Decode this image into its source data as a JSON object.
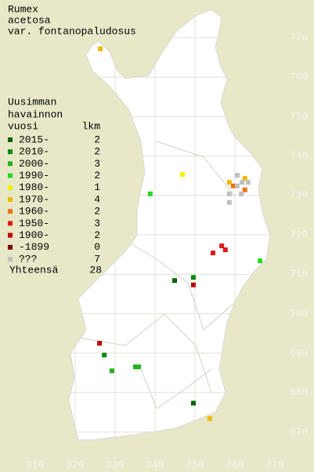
{
  "title": [
    "Rumex",
    "acetosa",
    "var. fontanopaludosus"
  ],
  "legend": {
    "header": [
      "Uusimman",
      "havainnon"
    ],
    "year_heading": "vuosi",
    "count_heading": "lkm",
    "items": [
      {
        "label": "2015-",
        "count": 2,
        "color": "#006400",
        "points": [
          [
            344.9,
            708.4
          ],
          [
            349.6,
            677.3
          ]
        ]
      },
      {
        "label": "2010-",
        "count": 2,
        "color": "#0a8a0a",
        "points": [
          [
            349.6,
            709.2
          ],
          [
            327.3,
            689.5
          ]
        ]
      },
      {
        "label": "2000-",
        "count": 3,
        "color": "#22b222",
        "points": [
          [
            329.2,
            685.5
          ],
          [
            335.1,
            686.5
          ],
          [
            335.9,
            686.5
          ]
        ]
      },
      {
        "label": "1990-",
        "count": 2,
        "color": "#22dd22",
        "points": [
          [
            338.8,
            730.4
          ],
          [
            366.3,
            713.4
          ]
        ]
      },
      {
        "label": "1980-",
        "count": 1,
        "color": "#f0f000",
        "points": [
          [
            346.9,
            735.3
          ]
        ]
      },
      {
        "label": "1970-",
        "count": 4,
        "color": "#f0b800",
        "points": [
          [
            326.3,
            767.2
          ],
          [
            353.7,
            673.4
          ],
          [
            362.5,
            734.3
          ],
          [
            358.6,
            733.3
          ]
        ]
      },
      {
        "label": "1960-",
        "count": 2,
        "color": "#f07010",
        "points": [
          [
            362.5,
            731.4
          ],
          [
            359.6,
            732.4
          ]
        ]
      },
      {
        "label": "1950-",
        "count": 3,
        "color": "#e01818",
        "points": [
          [
            356.7,
            717.2
          ],
          [
            357.6,
            716.2
          ],
          [
            354.5,
            715.4
          ]
        ]
      },
      {
        "label": "1900-",
        "count": 2,
        "color": "#c00000",
        "points": [
          [
            349.6,
            707.3
          ],
          [
            326.1,
            692.5
          ]
        ]
      },
      {
        "label": "-1899",
        "count": 0,
        "color": "#800000",
        "points": []
      },
      {
        "label": "???",
        "count": 7,
        "color": "#c0c0c0",
        "points": [
          [
            360.6,
            735.1
          ],
          [
            361.8,
            733.3
          ],
          [
            360.6,
            732.4
          ],
          [
            363.3,
            733.3
          ],
          [
            358.6,
            730.4
          ],
          [
            358.6,
            728.2
          ],
          [
            361.6,
            730.4
          ]
        ]
      }
    ],
    "total_label": "Yhteensä",
    "total": 28
  },
  "grid": {
    "xlim": [
      310,
      370
    ],
    "ylim": [
      670,
      770
    ],
    "xticks": [
      310,
      320,
      330,
      340,
      350,
      360,
      370
    ],
    "yticks": [
      670,
      680,
      690,
      700,
      710,
      720,
      730,
      740,
      750,
      760,
      770
    ]
  }
}
